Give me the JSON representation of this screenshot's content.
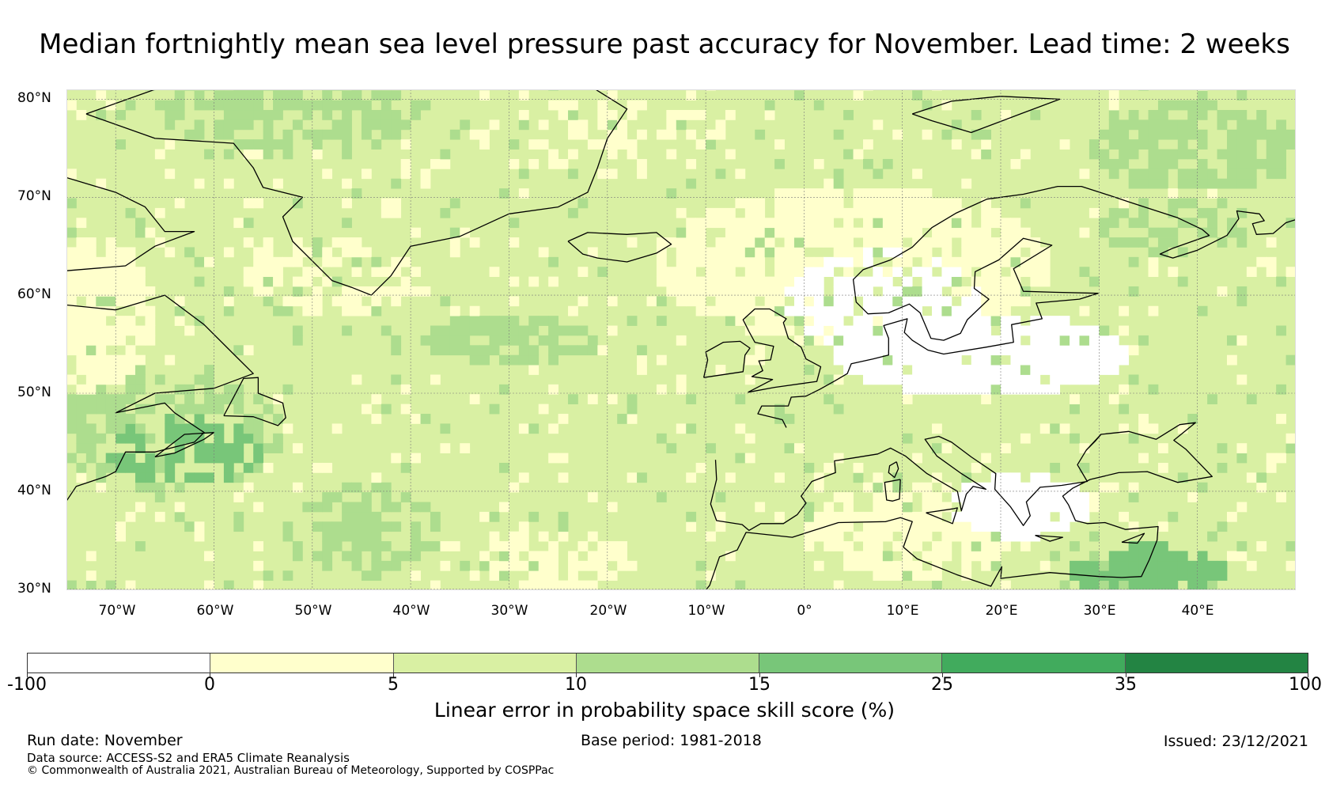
{
  "title": "Median fortnightly mean sea level pressure past accuracy for November. Lead time: 2 weeks",
  "map": {
    "lat_labels": [
      "80°N",
      "70°N",
      "60°N",
      "50°N",
      "40°N",
      "30°N"
    ],
    "lon_labels": [
      "70°W",
      "60°W",
      "50°W",
      "40°W",
      "30°W",
      "20°W",
      "10°W",
      "0°",
      "10°E",
      "20°E",
      "30°E",
      "40°E"
    ],
    "lat_values": [
      80,
      70,
      60,
      50,
      40,
      30
    ],
    "lon_values": [
      -70,
      -60,
      -50,
      -40,
      -30,
      -20,
      -10,
      0,
      10,
      20,
      30,
      40
    ],
    "lon_range": [
      -75,
      50
    ],
    "lat_range": [
      29.9,
      81
    ],
    "colors": {
      "lt0": "#ffffff",
      "c0_5": "#ffffcc",
      "c5_10": "#d9f0a3",
      "c10_15": "#addd8e",
      "c15_25": "#78c679",
      "c25_35": "#41ab5d",
      "c35_100": "#238443",
      "coast": "#000000",
      "grid": "#7a7a7a"
    }
  },
  "colorbar": {
    "ticks": [
      "-100",
      "0",
      "5",
      "10",
      "15",
      "25",
      "35",
      "100"
    ],
    "colors": [
      "#ffffff",
      "#ffffcc",
      "#d9f0a3",
      "#addd8e",
      "#78c679",
      "#41ab5d",
      "#238443"
    ],
    "label": "Linear error in probability space skill score (%)"
  },
  "footer": {
    "run_date": "Run date: November",
    "base_period": "Base period: 1981-2018",
    "issued": "Issued: 23/12/2021",
    "data_source": "Data source: ACCESS-S2 and ERA5 Climate Reanalysis",
    "copyright": "© Commonwealth of Australia 2021, Australian Bureau of Meteorology, Supported by COSPPac"
  }
}
